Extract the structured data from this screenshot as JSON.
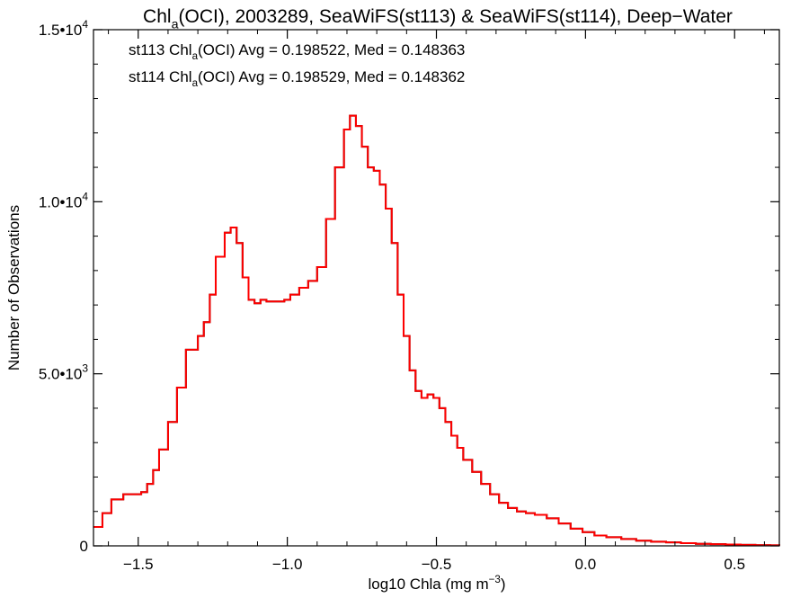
{
  "chart_data": {
    "type": "line",
    "title": {
      "parts": [
        {
          "text": "Chl"
        },
        {
          "text": "a",
          "sub": true
        },
        {
          "text": "(OCI), 2003289, SeaWiFS(st113) & SeaWiFS(st114), Deep−Water"
        }
      ]
    },
    "xlabel": {
      "parts": [
        {
          "text": "log10 Chla (mg m"
        },
        {
          "text": "−3",
          "sup": true
        },
        {
          "text": ")"
        }
      ]
    },
    "ylabel": "Number of Observations",
    "xlim": [
      -1.65,
      0.65
    ],
    "ylim": [
      0,
      15000
    ],
    "xticks": [
      {
        "value": -1.5,
        "label": "−1.5"
      },
      {
        "value": -1.0,
        "label": "−1.0"
      },
      {
        "value": -0.5,
        "label": "−0.5"
      },
      {
        "value": 0.0,
        "label": "0.0"
      },
      {
        "value": 0.5,
        "label": "0.5"
      }
    ],
    "yticks": [
      {
        "value": 0,
        "mant": "0",
        "exp": ""
      },
      {
        "value": 5000,
        "mant": "5.0•10",
        "exp": "3"
      },
      {
        "value": 10000,
        "mant": "1.0•10",
        "exp": "4"
      },
      {
        "value": 15000,
        "mant": "1.5•10",
        "exp": "4"
      }
    ],
    "annotations": [
      {
        "color": "#000000",
        "parts": [
          {
            "text": "st113 Chl"
          },
          {
            "text": "a",
            "sub": true
          },
          {
            "text": "(OCI) Avg = 0.198522, Med = 0.148363"
          }
        ]
      },
      {
        "color": "#ff0000",
        "parts": [
          {
            "text": "st114 Chl"
          },
          {
            "text": "a",
            "sub": true
          },
          {
            "text": "(OCI) Avg = 0.198529, Med = 0.148362"
          }
        ]
      }
    ],
    "series": [
      {
        "color": "#000000",
        "x": [
          -1.65,
          -1.62,
          -1.59,
          -1.55,
          -1.52,
          -1.49,
          -1.47,
          -1.45,
          -1.43,
          -1.4,
          -1.37,
          -1.34,
          -1.3,
          -1.28,
          -1.26,
          -1.24,
          -1.21,
          -1.19,
          -1.17,
          -1.15,
          -1.13,
          -1.11,
          -1.09,
          -1.07,
          -1.04,
          -1.01,
          -0.99,
          -0.96,
          -0.93,
          -0.9,
          -0.87,
          -0.84,
          -0.81,
          -0.79,
          -0.77,
          -0.75,
          -0.73,
          -0.71,
          -0.69,
          -0.67,
          -0.65,
          -0.63,
          -0.61,
          -0.59,
          -0.57,
          -0.55,
          -0.53,
          -0.51,
          -0.49,
          -0.47,
          -0.45,
          -0.43,
          -0.41,
          -0.38,
          -0.35,
          -0.32,
          -0.29,
          -0.26,
          -0.23,
          -0.2,
          -0.17,
          -0.13,
          -0.09,
          -0.05,
          -0.01,
          0.03,
          0.07,
          0.12,
          0.17,
          0.22,
          0.27,
          0.32,
          0.37,
          0.42,
          0.47,
          0.52,
          0.57,
          0.62,
          0.65
        ],
        "y": [
          550,
          950,
          1350,
          1500,
          1500,
          1560,
          1800,
          2200,
          2800,
          3600,
          4600,
          5700,
          6100,
          6500,
          7300,
          8400,
          9100,
          9250,
          8800,
          7800,
          7150,
          7050,
          7150,
          7100,
          7100,
          7150,
          7300,
          7500,
          7700,
          8100,
          9500,
          11000,
          12100,
          12500,
          12200,
          11600,
          11000,
          10900,
          10500,
          9800,
          8800,
          7300,
          6100,
          5100,
          4500,
          4300,
          4400,
          4300,
          4000,
          3600,
          3200,
          2850,
          2500,
          2150,
          1800,
          1500,
          1250,
          1100,
          1000,
          950,
          900,
          800,
          650,
          500,
          400,
          300,
          250,
          200,
          150,
          120,
          100,
          80,
          60,
          50,
          40,
          30,
          20,
          15,
          10
        ]
      },
      {
        "color": "#ff0000",
        "x": [
          -1.65,
          -1.62,
          -1.59,
          -1.55,
          -1.52,
          -1.49,
          -1.47,
          -1.45,
          -1.43,
          -1.4,
          -1.37,
          -1.34,
          -1.3,
          -1.28,
          -1.26,
          -1.24,
          -1.21,
          -1.19,
          -1.17,
          -1.15,
          -1.13,
          -1.11,
          -1.09,
          -1.07,
          -1.04,
          -1.01,
          -0.99,
          -0.96,
          -0.93,
          -0.9,
          -0.87,
          -0.84,
          -0.81,
          -0.79,
          -0.77,
          -0.75,
          -0.73,
          -0.71,
          -0.69,
          -0.67,
          -0.65,
          -0.63,
          -0.61,
          -0.59,
          -0.57,
          -0.55,
          -0.53,
          -0.51,
          -0.49,
          -0.47,
          -0.45,
          -0.43,
          -0.41,
          -0.38,
          -0.35,
          -0.32,
          -0.29,
          -0.26,
          -0.23,
          -0.2,
          -0.17,
          -0.13,
          -0.09,
          -0.05,
          -0.01,
          0.03,
          0.07,
          0.12,
          0.17,
          0.22,
          0.27,
          0.32,
          0.37,
          0.42,
          0.47,
          0.52,
          0.57,
          0.62,
          0.65
        ],
        "y": [
          550,
          950,
          1350,
          1500,
          1500,
          1560,
          1800,
          2200,
          2800,
          3600,
          4600,
          5700,
          6100,
          6500,
          7300,
          8400,
          9100,
          9250,
          8800,
          7800,
          7150,
          7050,
          7150,
          7100,
          7100,
          7150,
          7300,
          7500,
          7700,
          8100,
          9500,
          11000,
          12100,
          12500,
          12200,
          11600,
          11000,
          10900,
          10500,
          9800,
          8800,
          7300,
          6100,
          5100,
          4500,
          4300,
          4400,
          4300,
          4000,
          3600,
          3200,
          2850,
          2500,
          2150,
          1800,
          1500,
          1250,
          1100,
          1000,
          950,
          900,
          800,
          650,
          500,
          400,
          300,
          250,
          200,
          150,
          120,
          100,
          80,
          60,
          50,
          40,
          30,
          20,
          15,
          10
        ]
      }
    ]
  }
}
